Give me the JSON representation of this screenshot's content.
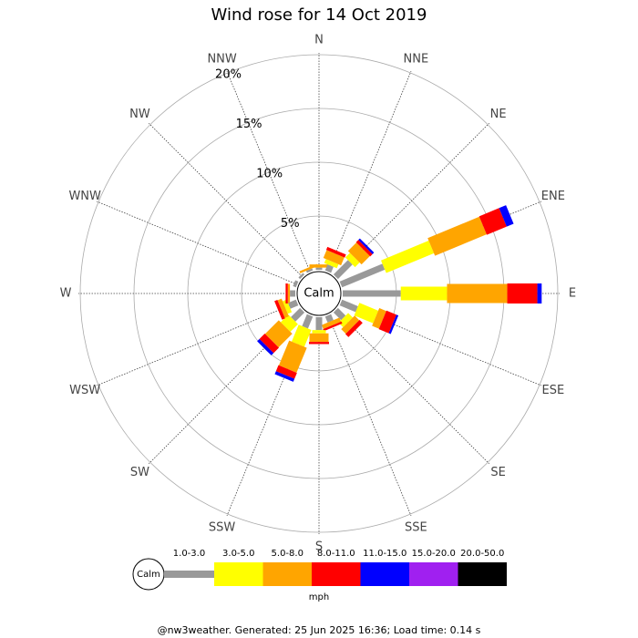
{
  "chart_data": {
    "type": "windrose",
    "title": "Wind rose for 14 Oct 2019",
    "calm_label": "Calm",
    "unit_label": "mph",
    "footer": "@nw3weather. Generated: 25 Jun 2025 16:36; Load time: 0.14 s",
    "categories": [
      "N",
      "NNE",
      "NE",
      "ENE",
      "E",
      "ESE",
      "SE",
      "SSE",
      "S",
      "SSW",
      "SW",
      "WSW",
      "W",
      "WNW",
      "NW",
      "NNW"
    ],
    "rlim": [
      0,
      20
    ],
    "rticks": [
      {
        "value": 5,
        "label": "5%"
      },
      {
        "value": 10,
        "label": "10%"
      },
      {
        "value": 15,
        "label": "15%"
      },
      {
        "value": 20,
        "label": "20%"
      }
    ],
    "series": [
      {
        "name": "1.0-3.0",
        "color": "#999999",
        "values": [
          0.2,
          0.6,
          1.9,
          4.3,
          5.4,
          1.6,
          1.0,
          0.6,
          1.2,
          1.2,
          1.2,
          0.8,
          0.5,
          0.3,
          0.2,
          0.2
        ]
      },
      {
        "name": "3.0-5.0",
        "color": "#ffff00",
        "values": [
          0,
          0.4,
          0.6,
          4.8,
          4.3,
          1.9,
          0.6,
          0,
          0.3,
          1.7,
          1.0,
          0.4,
          0,
          0,
          0,
          0
        ]
      },
      {
        "name": "5.0-8.0",
        "color": "#ffa500",
        "values": [
          0.3,
          0.8,
          1.1,
          5.2,
          5.6,
          0.7,
          0.6,
          0.4,
          0.8,
          2.5,
          1.8,
          0.4,
          0.2,
          0,
          0,
          0.2
        ]
      },
      {
        "name": "8.0-11.0",
        "color": "#ff0000",
        "values": [
          0,
          0.3,
          0.3,
          2.0,
          2.8,
          1.0,
          0.4,
          0.2,
          0.2,
          0.6,
          0.7,
          0.3,
          0.2,
          0,
          0,
          0
        ]
      },
      {
        "name": "11.0-15.0",
        "color": "#0000ff",
        "values": [
          0,
          0,
          0.2,
          0.7,
          0.4,
          0.2,
          0,
          0,
          0,
          0.3,
          0.3,
          0,
          0,
          0,
          0,
          0
        ]
      },
      {
        "name": "15.0-20.0",
        "color": "#a020f0",
        "values": [
          0,
          0,
          0,
          0,
          0,
          0,
          0,
          0,
          0,
          0,
          0,
          0,
          0,
          0,
          0,
          0
        ]
      },
      {
        "name": "20.0-50.0",
        "color": "#000000",
        "values": [
          0,
          0,
          0,
          0,
          0,
          0,
          0,
          0,
          0,
          0,
          0,
          0,
          0,
          0,
          0,
          0
        ]
      }
    ]
  }
}
